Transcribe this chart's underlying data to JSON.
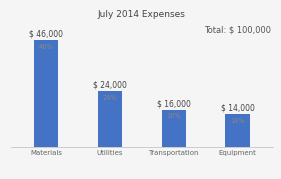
{
  "title": "July 2014 Expenses",
  "total_label": "Total: $ 100,000",
  "categories": [
    "Materials",
    "Utilities",
    "Transportation",
    "Equipment"
  ],
  "values": [
    46000,
    24000,
    16000,
    14000
  ],
  "percentages": [
    "46%",
    "24%",
    "16%",
    "14%"
  ],
  "dollar_labels": [
    "$ 46,000",
    "$ 24,000",
    "$ 16,000",
    "$ 14,000"
  ],
  "bar_color": "#4472C4",
  "background_color": "#f5f5f5",
  "ylim": [
    0,
    54000
  ],
  "title_fontsize": 6.5,
  "label_fontsize": 5.5,
  "pct_fontsize": 4.8,
  "axis_label_fontsize": 5.0,
  "total_fontsize": 6.0
}
